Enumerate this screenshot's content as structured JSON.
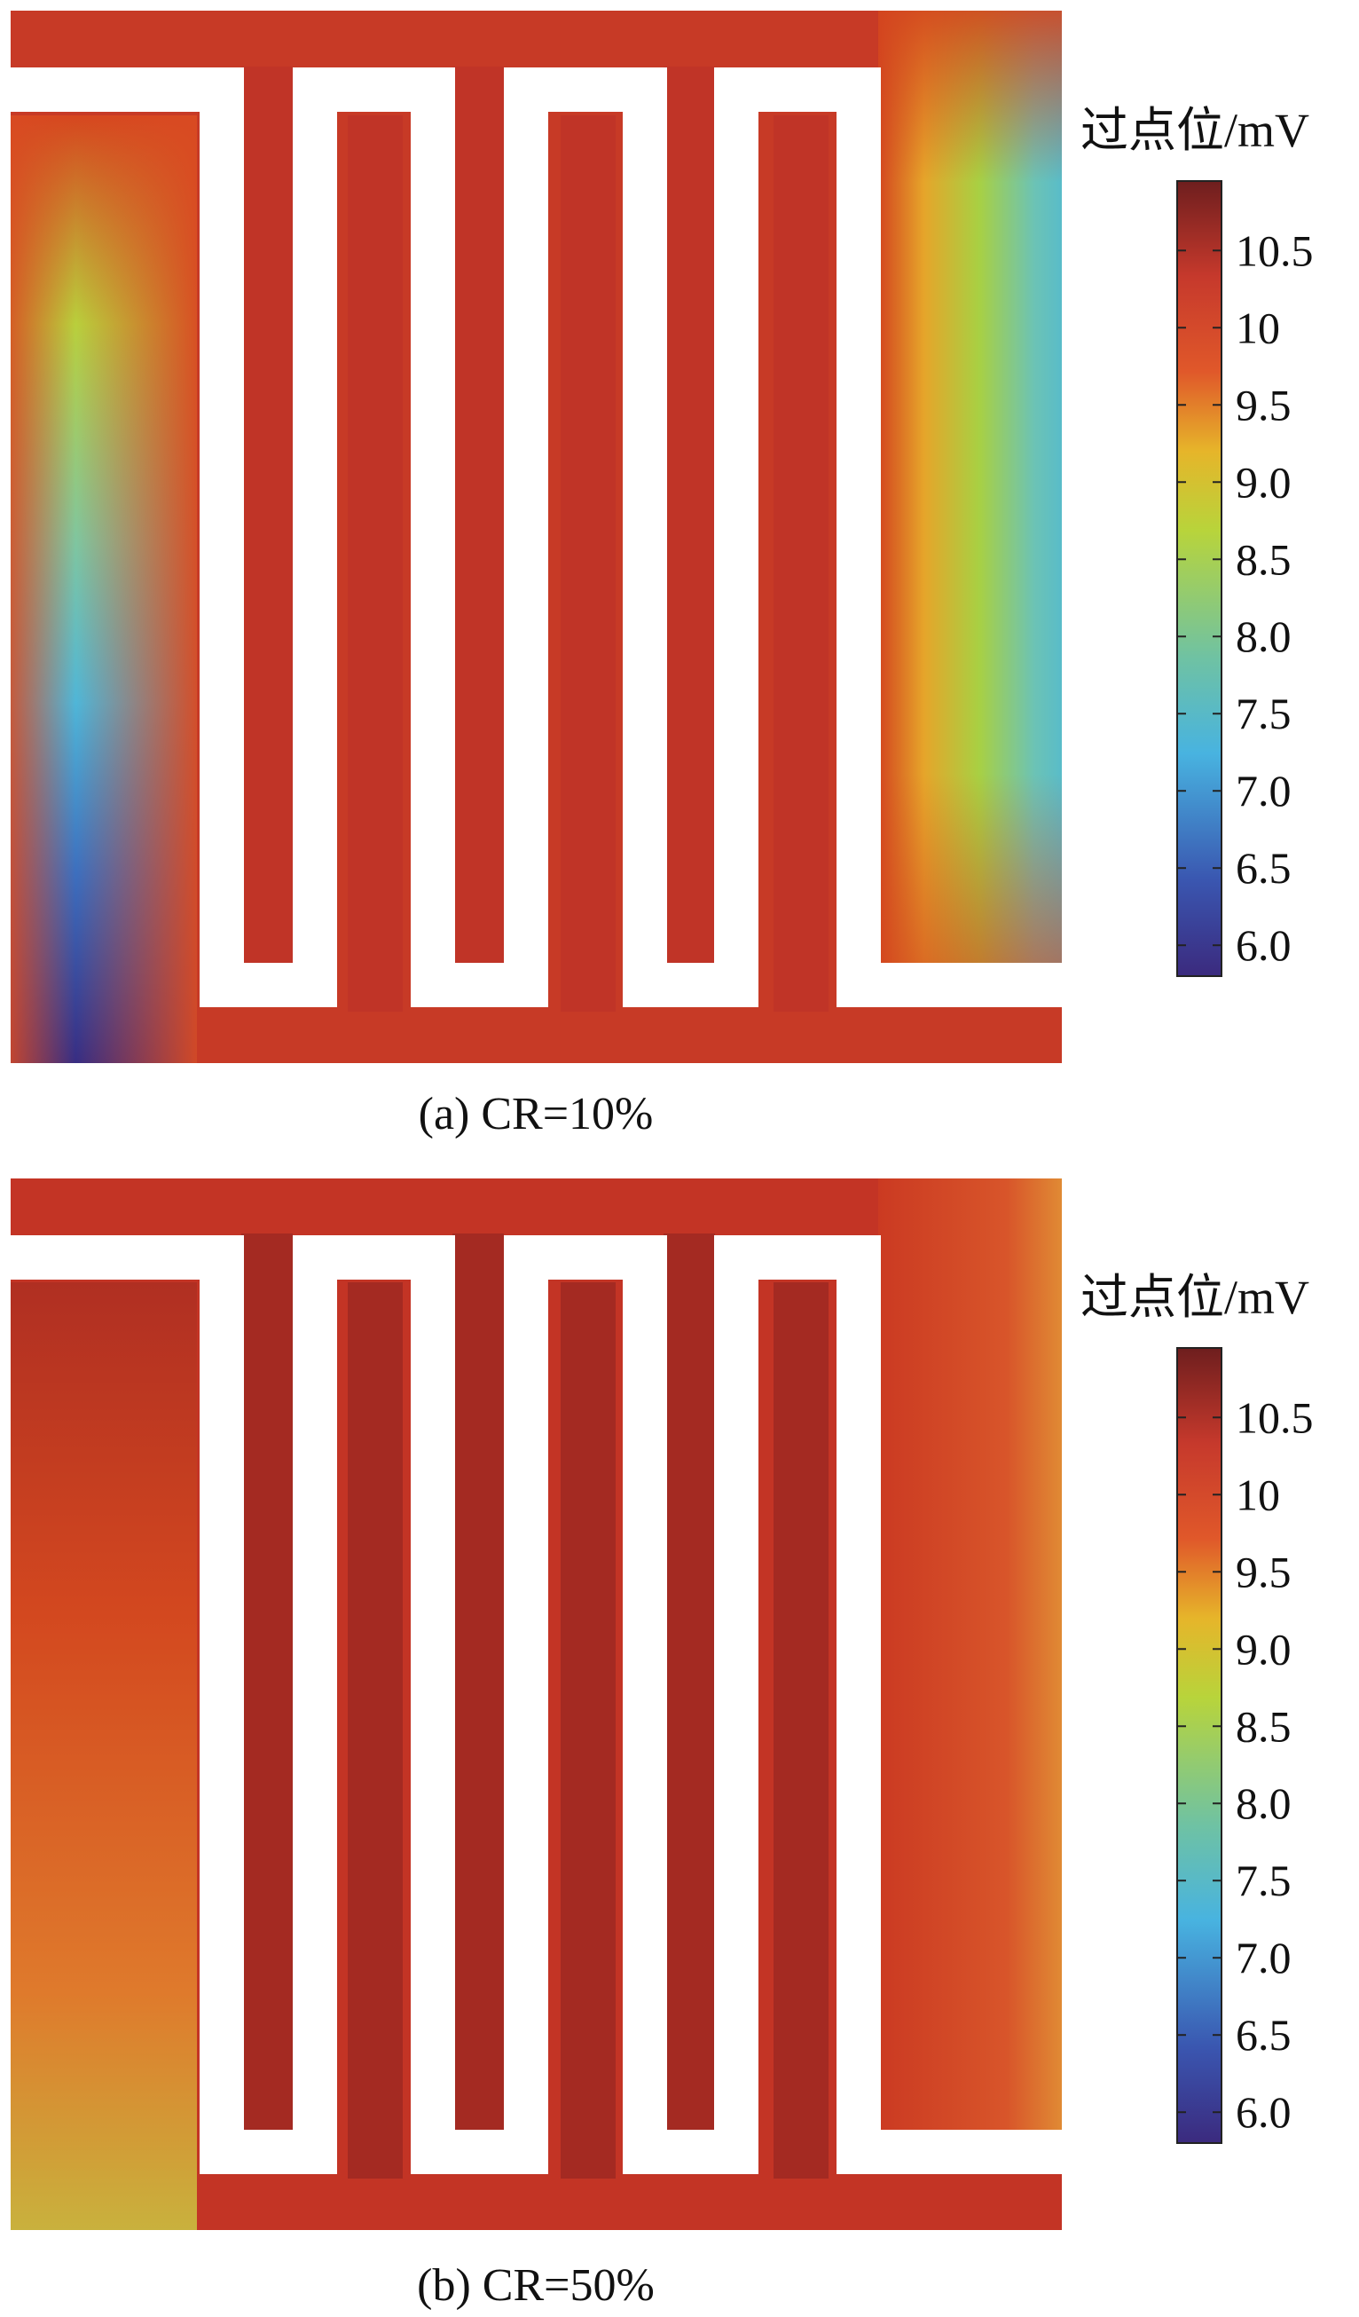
{
  "chart_data": [
    {
      "type": "heatmap",
      "panel_label": "(a) CR=10%",
      "colorbar_title": "过点位/mV",
      "colorbar_range": [
        5.8,
        10.95
      ],
      "colorbar_ticks": [
        "10.5",
        "10",
        "9.5",
        "9.0",
        "8.5",
        "8.0",
        "7.5",
        "7.0",
        "6.5",
        "6.0"
      ],
      "colorbar_tick_values": [
        10.5,
        10.0,
        9.5,
        9.0,
        8.5,
        8.0,
        7.5,
        7.0,
        6.5,
        6.0
      ],
      "field": {
        "base_value": 10.3,
        "left_channel_gradient": [
          9.8,
          9.2,
          8.4,
          7.6,
          6.4,
          5.9
        ],
        "right_channel_gradient": [
          8.0,
          7.5,
          7.3,
          7.5,
          8.3
        ],
        "min_value": 5.9,
        "max_value": 10.6
      }
    },
    {
      "type": "heatmap",
      "panel_label": "(b) CR=50%",
      "colorbar_title": "过点位/mV",
      "colorbar_range": [
        5.8,
        10.95
      ],
      "colorbar_ticks": [
        "10.5",
        "10",
        "9.5",
        "9.0",
        "8.5",
        "8.0",
        "7.5",
        "7.0",
        "6.5",
        "6.0"
      ],
      "colorbar_tick_values": [
        10.5,
        10.0,
        9.5,
        9.0,
        8.5,
        8.0,
        7.5,
        7.0,
        6.5,
        6.0
      ],
      "field": {
        "base_value": 10.4,
        "left_channel_gradient": [
          10.6,
          10.2,
          9.9,
          9.5,
          9.2
        ],
        "right_channel_gradient": [
          10.2,
          10.0,
          9.8,
          9.7,
          9.6
        ],
        "min_value": 9.2,
        "max_value": 10.9
      }
    }
  ]
}
